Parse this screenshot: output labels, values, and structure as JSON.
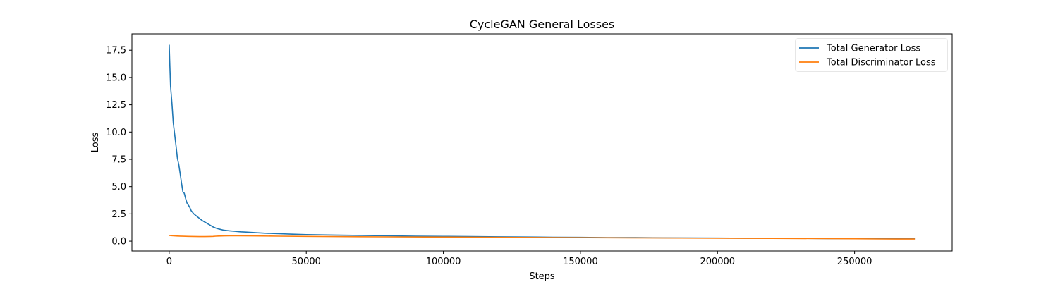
{
  "chart_data": {
    "type": "line",
    "title": "CycleGAN General Losses",
    "xlabel": "Steps",
    "ylabel": "Loss",
    "xlim": [
      -13600,
      285600
    ],
    "ylim": [
      -0.9,
      19.0
    ],
    "xticks": [
      0,
      50000,
      100000,
      150000,
      200000,
      250000
    ],
    "yticks": [
      0.0,
      2.5,
      5.0,
      7.5,
      10.0,
      12.5,
      15.0,
      17.5
    ],
    "grid": false,
    "legend_position": "upper-right",
    "series": [
      {
        "name": "Total Generator Loss",
        "color": "#1f77b4",
        "x": [
          0,
          200,
          500,
          1000,
          1500,
          2000,
          2500,
          3000,
          3500,
          4000,
          4500,
          5000,
          5500,
          6000,
          6500,
          7000,
          7500,
          8000,
          9000,
          10000,
          11000,
          12000,
          13000,
          14000,
          15000,
          16000,
          17000,
          18000,
          19000,
          20000,
          22000,
          24000,
          26000,
          28000,
          30000,
          35000,
          40000,
          45000,
          50000,
          60000,
          70000,
          80000,
          90000,
          100000,
          110000,
          120000,
          130000,
          140000,
          150000,
          160000,
          170000,
          180000,
          190000,
          200000,
          210000,
          220000,
          230000,
          240000,
          250000,
          260000,
          272000
        ],
        "y": [
          18.0,
          16.5,
          14.2,
          12.6,
          10.8,
          9.8,
          8.7,
          7.6,
          7.0,
          6.2,
          5.3,
          4.5,
          4.4,
          3.9,
          3.5,
          3.3,
          3.1,
          2.8,
          2.5,
          2.3,
          2.1,
          1.9,
          1.75,
          1.6,
          1.45,
          1.3,
          1.2,
          1.12,
          1.06,
          1.0,
          0.95,
          0.9,
          0.86,
          0.83,
          0.8,
          0.73,
          0.68,
          0.64,
          0.6,
          0.56,
          0.52,
          0.49,
          0.46,
          0.44,
          0.42,
          0.4,
          0.38,
          0.36,
          0.35,
          0.33,
          0.32,
          0.3,
          0.29,
          0.28,
          0.27,
          0.26,
          0.25,
          0.24,
          0.23,
          0.22,
          0.22
        ]
      },
      {
        "name": "Total Discriminator Loss",
        "color": "#ff7f0e",
        "x": [
          0,
          1000,
          2000,
          3000,
          5000,
          7000,
          9000,
          11000,
          13000,
          15000,
          16000,
          17000,
          18000,
          20000,
          22000,
          25000,
          30000,
          40000,
          50000,
          60000,
          80000,
          100000,
          120000,
          140000,
          160000,
          180000,
          200000,
          220000,
          240000,
          260000,
          272000
        ],
        "y": [
          0.52,
          0.5,
          0.48,
          0.47,
          0.45,
          0.44,
          0.43,
          0.42,
          0.42,
          0.43,
          0.44,
          0.46,
          0.47,
          0.48,
          0.49,
          0.49,
          0.48,
          0.46,
          0.44,
          0.42,
          0.39,
          0.37,
          0.35,
          0.33,
          0.31,
          0.29,
          0.27,
          0.25,
          0.23,
          0.2,
          0.19
        ]
      }
    ]
  }
}
